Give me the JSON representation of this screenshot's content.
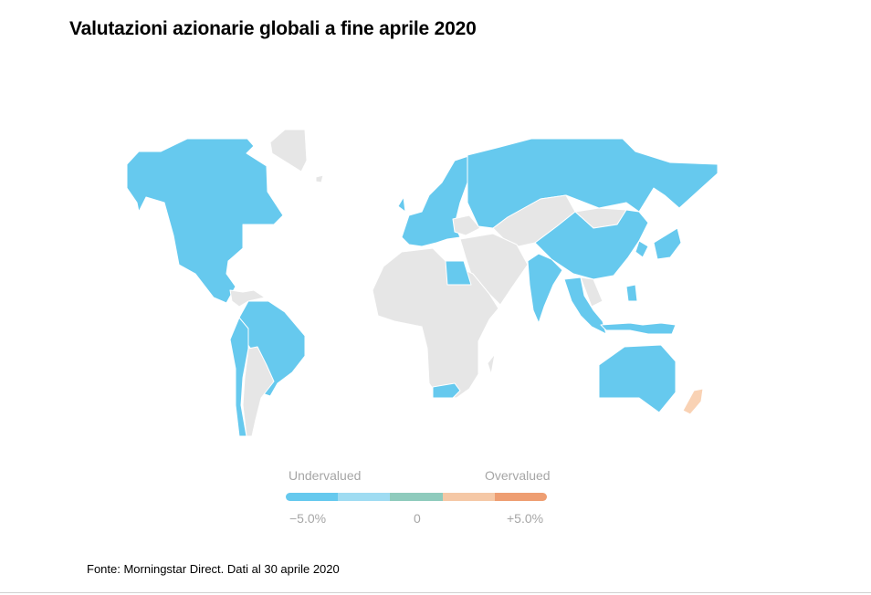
{
  "title": "Valutazioni azionarie globali a fine aprile 2020",
  "legend": {
    "left_label": "Undervalued",
    "right_label": "Overvalued",
    "min_tick": "−5.0%",
    "mid_tick": "0",
    "max_tick": "+5.0%",
    "colors": [
      "#66c9ee",
      "#9fdcf2",
      "#8fcbbd",
      "#f5c8a6",
      "#ee9e72"
    ]
  },
  "colors": {
    "undervalued": "#66c9ee",
    "overvalued_slight": "#f9d2b4",
    "no_data": "#e6e6e6"
  },
  "regions": {
    "north_america": "undervalued",
    "south_america_east": "undervalued",
    "south_america_west_coast": "undervalued",
    "europe": "undervalued",
    "russia": "undervalued",
    "egypt": "undervalued",
    "south_africa": "undervalued",
    "china": "undervalued",
    "japan": "undervalued",
    "india": "undervalued",
    "southeast_asia": "undervalued",
    "australia": "undervalued",
    "new_zealand": "overvalued_slight",
    "greenland": "no_data",
    "africa": "no_data",
    "middle_east": "no_data",
    "central_asia": "no_data"
  },
  "source": "Fonte: Morningstar Direct. Dati al 30 aprile 2020"
}
